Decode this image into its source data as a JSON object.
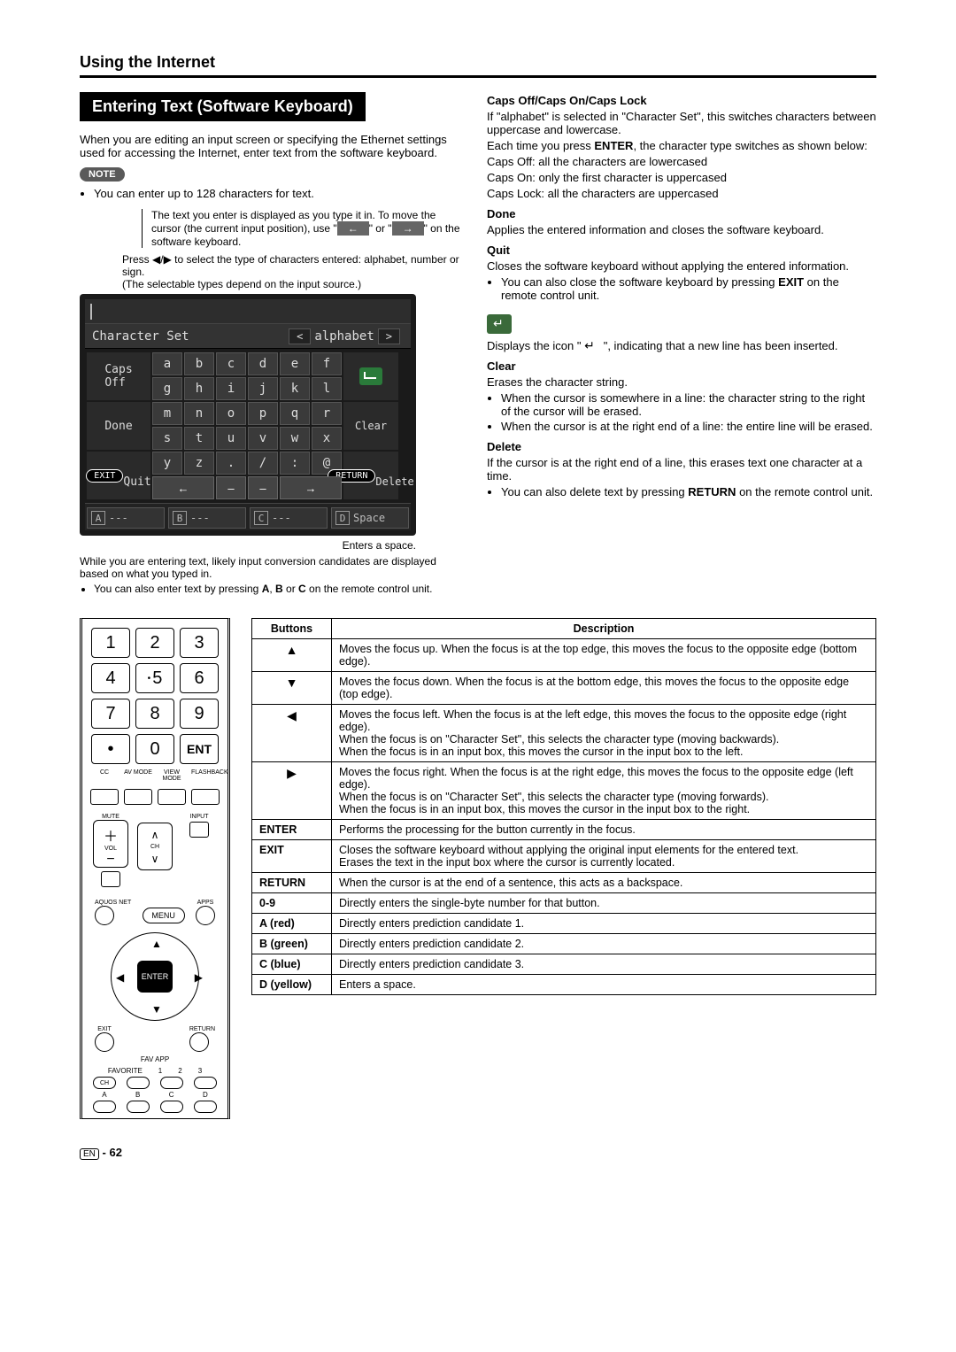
{
  "page": {
    "heading": "Using the Internet",
    "section_title": "Entering Text (Software Keyboard)",
    "footer": "- 62",
    "footer_prefix": "EN"
  },
  "intro": "When you are editing an input screen or specifying the Ethernet settings used for accessing the Internet, enter text from the software keyboard.",
  "note_badge": "NOTE",
  "note_bullet": "You can enter up to 128 characters for text.",
  "hint_top": "The text you enter is displayed as you type it in. To move the cursor (the current input position), use \"",
  "hint_top_end": "\" on the software keyboard.",
  "hint_or": "\" or \"",
  "hint_mid1": "Press ◀/▶ to select the type of characters entered: alphabet, number or sign.",
  "hint_mid2": "(The selectable types depend on the input source.)",
  "kbd": {
    "charset_label": "Character Set",
    "charset_value": "alphabet",
    "left_labels": [
      "Caps",
      "Off",
      "Done",
      "Quit"
    ],
    "exit_pill": "EXIT",
    "return_pill": "RETURN",
    "right_labels": [
      "Clear",
      "Delete"
    ],
    "rows": [
      [
        "a",
        "b",
        "c",
        "d",
        "e",
        "f"
      ],
      [
        "g",
        "h",
        "i",
        "j",
        "k",
        "l"
      ],
      [
        "m",
        "n",
        "o",
        "p",
        "q",
        "r"
      ],
      [
        "s",
        "t",
        "u",
        "v",
        "w",
        "x"
      ],
      [
        "y",
        "z",
        ".",
        "/",
        ":",
        "@"
      ]
    ],
    "footer_letters": [
      "A",
      "B",
      "C",
      "D"
    ],
    "footer_space": "Space"
  },
  "caption_under": "Enters a space.",
  "candidates_note": "While you are entering text, likely input conversion candidates are displayed based on what you typed in.",
  "abc_bullet": "You can also enter text by pressing A, B or C on the remote control unit.",
  "defs": {
    "caps_title": "Caps Off/Caps On/Caps Lock",
    "caps_l1": "If \"alphabet\" is selected in \"Character Set\", this switches characters between uppercase and lowercase.",
    "caps_l2a": "Each time you press ",
    "caps_enter": "ENTER",
    "caps_l2b": ", the character type switches as shown below:",
    "caps_off": "Caps Off: all the characters are lowercased",
    "caps_on": "Caps On: only the first character is uppercased",
    "caps_lock": "Caps Lock: all the characters are uppercased",
    "done_title": "Done",
    "done_body": "Applies the entered information and closes the software keyboard.",
    "quit_title": "Quit",
    "quit_body": "Closes the software keyboard without applying the entered information.",
    "quit_bullet": "You can also close the software keyboard by pressing EXIT on the remote control unit.",
    "enter_body1": "Displays the icon \" ",
    "enter_body2": " \", indicating that a new line has been inserted.",
    "clear_title": "Clear",
    "clear_body": "Erases the character string.",
    "clear_b1": "When the cursor is somewhere in a line: the character string to the right of the cursor will be erased.",
    "clear_b2": "When the cursor is at the right end of a line: the entire line will be erased.",
    "delete_title": "Delete",
    "delete_body": "If the cursor is at the right end of a line, this erases text one character at a time.",
    "delete_bullet": "You can also delete text by pressing RETURN on the remote control unit."
  },
  "remote": {
    "nums": [
      "1",
      "2",
      "3",
      "4",
      "5",
      "6",
      "7",
      "8",
      "9",
      "•",
      "0",
      "ENT"
    ],
    "row4_labels": [
      "CC",
      "AV MODE",
      "VIEW MODE",
      "FLASHBACK"
    ],
    "mute": "MUTE",
    "input": "INPUT",
    "vol": "VOL",
    "ch": "CH",
    "aquos": "AQUOS NET",
    "menu": "MENU",
    "apps": "APPS",
    "enter": "ENTER",
    "exit": "EXIT",
    "return": "RETURN",
    "fav_app": "FAV APP",
    "favorite": "FAVORITE",
    "fav_nums": [
      "1",
      "2",
      "3"
    ],
    "ch_lbl": "CH",
    "abcd": [
      "A",
      "B",
      "C",
      "D"
    ]
  },
  "table": {
    "head_buttons": "Buttons",
    "head_desc": "Description",
    "rows": [
      {
        "btn": "▲",
        "center": true,
        "desc": "Moves the focus up. When the focus is at the top edge, this moves the focus to the opposite edge (bottom edge)."
      },
      {
        "btn": "▼",
        "center": true,
        "desc": "Moves the focus down. When the focus is at the bottom edge, this moves the focus to the opposite edge (top edge)."
      },
      {
        "btn": "◀",
        "center": true,
        "desc": "Moves the focus left. When the focus is at the left edge, this moves the focus to the opposite edge (right edge).\nWhen the focus is on \"Character Set\", this selects the character type (moving backwards).\nWhen the focus is in an input box, this moves the cursor in the input box to the left."
      },
      {
        "btn": "▶",
        "center": true,
        "desc": "Moves the focus right. When the focus is at the right edge, this moves the focus to the opposite edge (left edge).\nWhen the focus is on \"Character Set\", this selects the character type (moving forwards).\nWhen the focus is in an input box, this moves the cursor in the input box to the right."
      },
      {
        "btn": "ENTER",
        "desc": "Performs the processing for the button currently in the focus."
      },
      {
        "btn": "EXIT",
        "desc": "Closes the software keyboard without applying the original input elements for the entered text.\nErases the text in the input box where the cursor is currently located."
      },
      {
        "btn": "RETURN",
        "desc": "When the cursor is at the end of a sentence, this acts as a backspace."
      },
      {
        "btn": "0-9",
        "desc": "Directly enters the single-byte number for that button."
      },
      {
        "btn": "A (red)",
        "desc": "Directly enters prediction candidate 1."
      },
      {
        "btn": "B (green)",
        "desc": "Directly enters prediction candidate 2."
      },
      {
        "btn": "C (blue)",
        "desc": "Directly enters prediction candidate 3."
      },
      {
        "btn": "D (yellow)",
        "desc": "Enters a space."
      }
    ]
  }
}
